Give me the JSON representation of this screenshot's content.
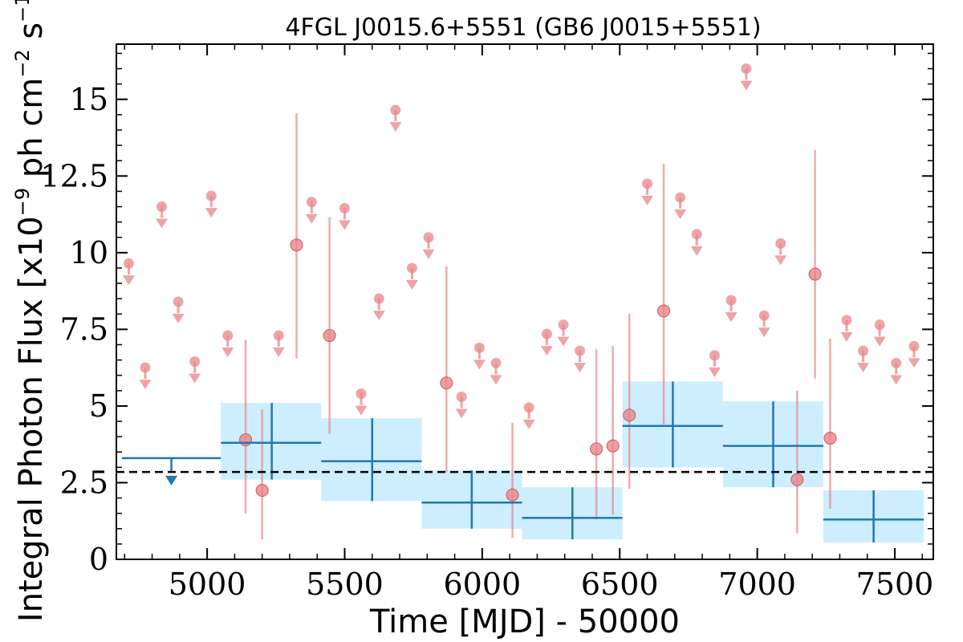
{
  "chart_data": {
    "type": "scatter",
    "title": "4FGL J0015.6+5551 (GB6 J0015+5551)",
    "xlabel": "Time [MJD] - 50000",
    "ylabel_main": "Integral Photon Flux [x10",
    "ylabel_exp": "−9",
    "ylabel_units": " ph cm",
    "ylabel_exp2": "−2",
    "ylabel_units2": " s",
    "ylabel_exp3": "−1",
    "ylabel_close": "]",
    "xlim": [
      4670,
      7640
    ],
    "ylim": [
      0,
      16.8
    ],
    "xticks": [
      5000,
      5500,
      6000,
      6500,
      7000,
      7500
    ],
    "xtick_labels": [
      "5000",
      "5500",
      "6000",
      "6500",
      "7000",
      "7500"
    ],
    "yticks": [
      0,
      2.5,
      5,
      7.5,
      10,
      12.5,
      15
    ],
    "ytick_labels": [
      "0",
      "2.5",
      "5",
      "7.5",
      "10",
      "12.5",
      "15"
    ],
    "mean_flux": 2.85,
    "colors": {
      "short_bins": "#e8868a",
      "long_bins": "#1f77b4",
      "long_band": "#cdeeff",
      "mean_line": "#000000"
    },
    "long_bins": [
      {
        "start": 4690,
        "end": 5050,
        "center": 4870,
        "upper_limit": 3.3
      },
      {
        "start": 5050,
        "end": 5415,
        "center": 5235,
        "flux": 3.8,
        "err_low": 1.2,
        "err_high": 1.3
      },
      {
        "start": 5415,
        "end": 5780,
        "center": 5600,
        "flux": 3.2,
        "err_low": 1.3,
        "err_high": 1.4
      },
      {
        "start": 5780,
        "end": 6145,
        "center": 5962,
        "flux": 1.85,
        "err_low": 0.85,
        "err_high": 1.05
      },
      {
        "start": 6145,
        "end": 6510,
        "center": 6328,
        "flux": 1.35,
        "err_low": 0.7,
        "err_high": 1.0
      },
      {
        "start": 6510,
        "end": 6875,
        "center": 6693,
        "flux": 4.35,
        "err_low": 1.35,
        "err_high": 1.45
      },
      {
        "start": 6875,
        "end": 7240,
        "center": 7058,
        "flux": 3.7,
        "err_low": 1.35,
        "err_high": 1.45
      },
      {
        "start": 7240,
        "end": 7605,
        "center": 7423,
        "flux": 1.3,
        "err_low": 0.75,
        "err_high": 0.95
      }
    ],
    "short_detections": [
      {
        "x": 5140,
        "y": 3.9,
        "yerr_low": 2.4,
        "yerr_high": 3.25
      },
      {
        "x": 5200,
        "y": 2.25,
        "yerr_low": 1.6,
        "yerr_high": 2.65
      },
      {
        "x": 5325,
        "y": 10.25,
        "yerr_low": 3.7,
        "yerr_high": 4.3
      },
      {
        "x": 5445,
        "y": 7.3,
        "yerr_low": 3.2,
        "yerr_high": 3.85
      },
      {
        "x": 5870,
        "y": 5.75,
        "yerr_low": 2.9,
        "yerr_high": 3.8
      },
      {
        "x": 6110,
        "y": 2.1,
        "yerr_low": 1.4,
        "yerr_high": 2.35
      },
      {
        "x": 6415,
        "y": 3.6,
        "yerr_low": 2.3,
        "yerr_high": 3.25
      },
      {
        "x": 6475,
        "y": 3.7,
        "yerr_low": 2.25,
        "yerr_high": 3.25
      },
      {
        "x": 6535,
        "y": 4.7,
        "yerr_low": 2.4,
        "yerr_high": 3.3
      },
      {
        "x": 6660,
        "y": 8.1,
        "yerr_low": 3.7,
        "yerr_high": 4.8
      },
      {
        "x": 7210,
        "y": 9.3,
        "yerr_low": 3.4,
        "yerr_high": 4.05
      },
      {
        "x": 7145,
        "y": 2.6,
        "yerr_low": 1.75,
        "yerr_high": 2.9
      },
      {
        "x": 7265,
        "y": 3.95,
        "yerr_low": 2.3,
        "yerr_high": 3.25
      }
    ],
    "short_upper_limits": [
      {
        "x": 4715,
        "y": 9.65
      },
      {
        "x": 4775,
        "y": 6.25
      },
      {
        "x": 4835,
        "y": 11.5
      },
      {
        "x": 4895,
        "y": 8.4
      },
      {
        "x": 4955,
        "y": 6.45
      },
      {
        "x": 5015,
        "y": 11.85
      },
      {
        "x": 5075,
        "y": 7.3
      },
      {
        "x": 5260,
        "y": 7.3
      },
      {
        "x": 5380,
        "y": 11.65
      },
      {
        "x": 5500,
        "y": 11.45
      },
      {
        "x": 5560,
        "y": 5.4
      },
      {
        "x": 5625,
        "y": 8.5
      },
      {
        "x": 5685,
        "y": 14.65
      },
      {
        "x": 5745,
        "y": 9.5
      },
      {
        "x": 5805,
        "y": 10.5
      },
      {
        "x": 5925,
        "y": 5.3
      },
      {
        "x": 5990,
        "y": 6.9
      },
      {
        "x": 6050,
        "y": 6.4
      },
      {
        "x": 6170,
        "y": 4.95
      },
      {
        "x": 6235,
        "y": 7.35
      },
      {
        "x": 6295,
        "y": 7.65
      },
      {
        "x": 6355,
        "y": 6.8
      },
      {
        "x": 6600,
        "y": 12.25
      },
      {
        "x": 6720,
        "y": 11.8
      },
      {
        "x": 6780,
        "y": 10.6
      },
      {
        "x": 6845,
        "y": 6.65
      },
      {
        "x": 6905,
        "y": 8.45
      },
      {
        "x": 6960,
        "y": 16.0
      },
      {
        "x": 7025,
        "y": 7.95
      },
      {
        "x": 7085,
        "y": 10.3
      },
      {
        "x": 7325,
        "y": 7.8
      },
      {
        "x": 7385,
        "y": 6.8
      },
      {
        "x": 7445,
        "y": 7.65
      },
      {
        "x": 7505,
        "y": 6.4
      },
      {
        "x": 7570,
        "y": 6.95
      }
    ]
  }
}
